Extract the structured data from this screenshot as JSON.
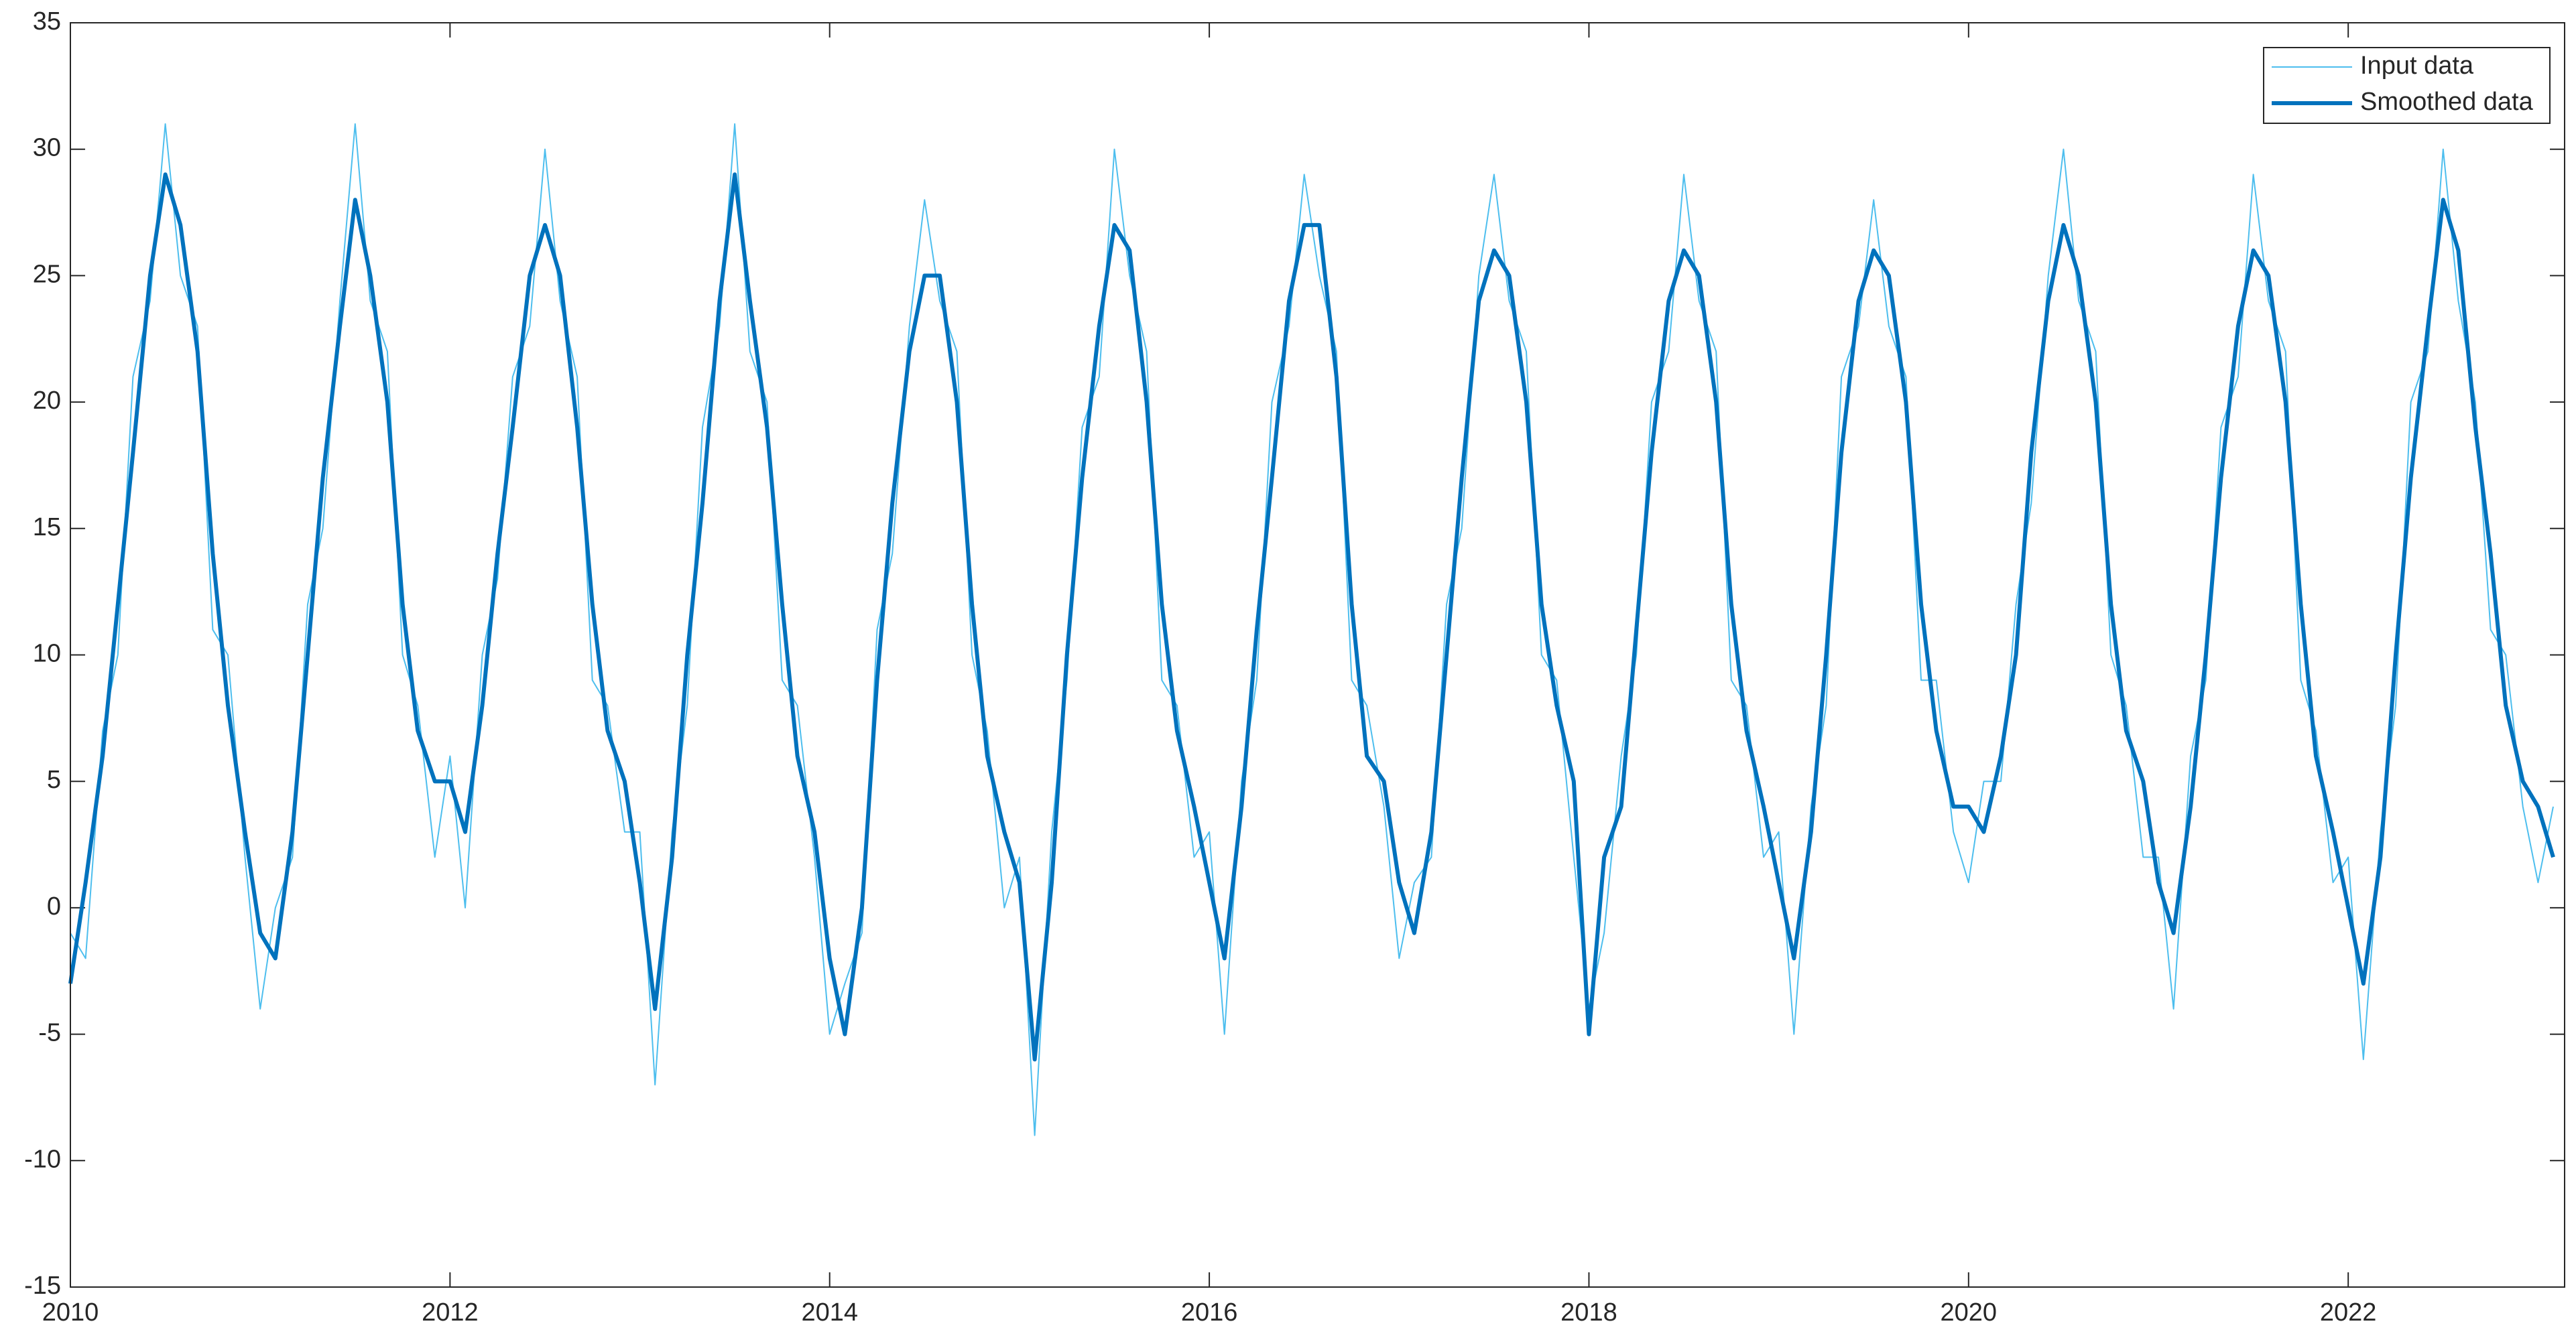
{
  "chart_data": {
    "type": "line",
    "x": [
      2010,
      2010.08,
      2010.17,
      2010.25,
      2010.33,
      2010.42,
      2010.5,
      2010.58,
      2010.67,
      2010.75,
      2010.83,
      2010.92,
      2011,
      2011.08,
      2011.17,
      2011.25,
      2011.33,
      2011.42,
      2011.5,
      2011.58,
      2011.67,
      2011.75,
      2011.83,
      2011.92,
      2012,
      2012.08,
      2012.17,
      2012.25,
      2012.33,
      2012.42,
      2012.5,
      2012.58,
      2012.67,
      2012.75,
      2012.83,
      2012.92,
      2013,
      2013.08,
      2013.17,
      2013.25,
      2013.33,
      2013.42,
      2013.5,
      2013.58,
      2013.67,
      2013.75,
      2013.83,
      2013.92,
      2014,
      2014.08,
      2014.17,
      2014.25,
      2014.33,
      2014.42,
      2014.5,
      2014.58,
      2014.67,
      2014.75,
      2014.83,
      2014.92,
      2015,
      2015.08,
      2015.17,
      2015.25,
      2015.33,
      2015.42,
      2015.5,
      2015.58,
      2015.67,
      2015.75,
      2015.83,
      2015.92,
      2016,
      2016.08,
      2016.17,
      2016.25,
      2016.33,
      2016.42,
      2016.5,
      2016.58,
      2016.67,
      2016.75,
      2016.83,
      2016.92,
      2017,
      2017.08,
      2017.17,
      2017.25,
      2017.33,
      2017.42,
      2017.5,
      2017.58,
      2017.67,
      2017.75,
      2017.83,
      2017.92,
      2018,
      2018.08,
      2018.17,
      2018.25,
      2018.33,
      2018.42,
      2018.5,
      2018.58,
      2018.67,
      2018.75,
      2018.83,
      2018.92,
      2019,
      2019.08,
      2019.17,
      2019.25,
      2019.33,
      2019.42,
      2019.5,
      2019.58,
      2019.67,
      2019.75,
      2019.83,
      2019.92,
      2020,
      2020.08,
      2020.17,
      2020.25,
      2020.33,
      2020.42,
      2020.5,
      2020.58,
      2020.67,
      2020.75,
      2020.83,
      2020.92,
      2021,
      2021.08,
      2021.17,
      2021.25,
      2021.33,
      2021.42,
      2021.5,
      2021.58,
      2021.67,
      2021.75,
      2021.83,
      2021.92,
      2022,
      2022.08,
      2022.17,
      2022.25,
      2022.33,
      2022.42,
      2022.5,
      2022.58,
      2022.67,
      2022.75,
      2022.83,
      2022.92,
      2023,
      2023.08
    ],
    "series": [
      {
        "name": "Input data",
        "color": "#4dbeee",
        "values": [
          -1,
          -2,
          7,
          10,
          21,
          24,
          31,
          25,
          23,
          11,
          10,
          2,
          -4,
          0,
          2,
          12,
          15,
          24,
          31,
          24,
          22,
          10,
          8,
          2,
          6,
          0,
          10,
          13,
          21,
          23,
          30,
          24,
          21,
          9,
          8,
          3,
          3,
          -7,
          3,
          8,
          19,
          23,
          31,
          22,
          20,
          9,
          8,
          2,
          -5,
          -3,
          -1,
          11,
          14,
          23,
          28,
          24,
          22,
          10,
          7,
          0,
          2,
          -9,
          3,
          9,
          19,
          21,
          30,
          25,
          22,
          9,
          8,
          2,
          3,
          -5,
          5,
          9,
          20,
          23,
          29,
          25,
          22,
          9,
          8,
          4,
          -2,
          1,
          2,
          12,
          15,
          25,
          29,
          24,
          22,
          10,
          9,
          2,
          -4,
          -1,
          6,
          10,
          20,
          22,
          29,
          24,
          22,
          9,
          8,
          2,
          3,
          -5,
          4,
          8,
          21,
          23,
          28,
          23,
          21,
          9,
          9,
          3,
          1,
          5,
          5,
          12,
          16,
          25,
          30,
          24,
          22,
          10,
          8,
          2,
          2,
          -4,
          6,
          9,
          19,
          21,
          29,
          24,
          22,
          9,
          7,
          1,
          2,
          -6,
          3,
          8,
          20,
          22,
          30,
          24,
          20,
          11,
          10,
          4,
          1,
          4
        ]
      },
      {
        "name": "Smoothed data",
        "color": "#0072bd",
        "values": [
          -3,
          1,
          6,
          12,
          18,
          25,
          29,
          27,
          22,
          14,
          8,
          3,
          -1,
          -2,
          3,
          10,
          17,
          23,
          28,
          25,
          20,
          12,
          7,
          5,
          5,
          3,
          8,
          14,
          19,
          25,
          27,
          25,
          19,
          12,
          7,
          5,
          1,
          -4,
          2,
          10,
          16,
          24,
          29,
          24,
          19,
          12,
          6,
          3,
          -2,
          -5,
          0,
          9,
          16,
          22,
          25,
          25,
          20,
          12,
          6,
          3,
          1,
          -6,
          1,
          10,
          17,
          23,
          27,
          26,
          20,
          12,
          7,
          4,
          1,
          -2,
          4,
          11,
          17,
          24,
          27,
          27,
          21,
          12,
          6,
          5,
          1,
          -1,
          3,
          10,
          17,
          24,
          26,
          25,
          20,
          12,
          8,
          5,
          -5,
          2,
          4,
          11,
          18,
          24,
          26,
          25,
          20,
          12,
          7,
          4,
          1,
          -2,
          3,
          10,
          18,
          24,
          26,
          25,
          20,
          12,
          7,
          4,
          4,
          3,
          6,
          10,
          18,
          24,
          27,
          25,
          20,
          12,
          7,
          5,
          1,
          -1,
          4,
          10,
          17,
          23,
          26,
          25,
          20,
          12,
          6,
          3,
          0,
          -3,
          2,
          10,
          17,
          23,
          28,
          26,
          19,
          14,
          8,
          5,
          4,
          2
        ]
      }
    ],
    "xlim": [
      2010,
      2023.14
    ],
    "xticks": [
      2010,
      2012,
      2014,
      2016,
      2018,
      2020,
      2022
    ],
    "ylim": [
      -15,
      35
    ],
    "yticks": [
      -15,
      -10,
      -5,
      0,
      5,
      10,
      15,
      20,
      25,
      30,
      35
    ],
    "legend": "upper right",
    "grid": false
  }
}
